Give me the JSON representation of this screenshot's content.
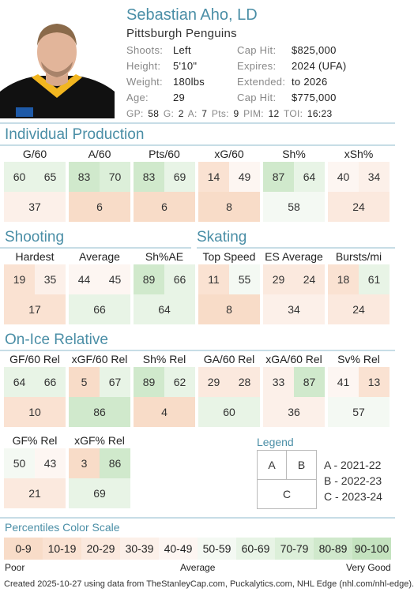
{
  "player": {
    "name": "Sebastian Aho, LD",
    "team": "Pittsburgh Penguins",
    "shoots_label": "Shoots:",
    "shoots": "Left",
    "height_label": "Height:",
    "height": "5'10\"",
    "weight_label": "Weight:",
    "weight": "180lbs",
    "age_label": "Age:",
    "age": "29",
    "caphit_label": "Cap Hit:",
    "caphit": "$825,000",
    "expires_label": "Expires:",
    "expires": "2024 (UFA)",
    "extended_label": "Extended:",
    "extended": "to 2026",
    "caphit2_label": "Cap Hit:",
    "caphit2": "$775,000"
  },
  "statline": {
    "gp_label": "GP:",
    "gp": "58",
    "g_label": "G:",
    "g": "2",
    "a_label": "A:",
    "a": "7",
    "pts_label": "Pts:",
    "pts": "9",
    "pim_label": "PIM:",
    "pim": "12",
    "toi_label": "TOI:",
    "toi": "16:23"
  },
  "colors": {
    "p0": "#f8dcc8",
    "p10": "#fae2d2",
    "p20": "#fbe9de",
    "p30": "#fcf0e9",
    "p40": "#fdf6f2",
    "p50": "#f4f9f3",
    "p60": "#e8f4e6",
    "p70": "#dcefd9",
    "p80": "#d0e9cc",
    "p90": "#c4e3bf"
  },
  "sections": {
    "production": "Individual Production",
    "shooting": "Shooting",
    "skating": "Skating",
    "onice": "On-Ice Relative"
  },
  "cards": [
    {
      "label": "G/60",
      "a": "60",
      "b": "65",
      "c": "37",
      "ca": "p60",
      "cb": "p60",
      "cc": "p30"
    },
    {
      "label": "A/60",
      "a": "83",
      "b": "70",
      "c": "6",
      "ca": "p80",
      "cb": "p70",
      "cc": "p0"
    },
    {
      "label": "Pts/60",
      "a": "83",
      "b": "69",
      "c": "6",
      "ca": "p80",
      "cb": "p60",
      "cc": "p0"
    },
    {
      "label": "xG/60",
      "a": "14",
      "b": "49",
      "c": "8",
      "ca": "p10",
      "cb": "p40",
      "cc": "p0"
    },
    {
      "label": "Sh%",
      "a": "87",
      "b": "64",
      "c": "58",
      "ca": "p80",
      "cb": "p60",
      "cc": "p50"
    },
    {
      "label": "xSh%",
      "a": "40",
      "b": "34",
      "c": "24",
      "ca": "p40",
      "cb": "p30",
      "cc": "p20"
    },
    {
      "label": "Hardest",
      "a": "19",
      "b": "35",
      "c": "17",
      "ca": "p10",
      "cb": "p30",
      "cc": "p10"
    },
    {
      "label": "Average",
      "a": "44",
      "b": "45",
      "c": "66",
      "ca": "p40",
      "cb": "p40",
      "cc": "p60"
    },
    {
      "label": "Sh%AE",
      "a": "89",
      "b": "66",
      "c": "64",
      "ca": "p80",
      "cb": "p60",
      "cc": "p60"
    },
    {
      "label": "Top Speed",
      "a": "11",
      "b": "55",
      "c": "8",
      "ca": "p10",
      "cb": "p50",
      "cc": "p0"
    },
    {
      "label": "ES Average",
      "a": "29",
      "b": "24",
      "c": "34",
      "ca": "p20",
      "cb": "p20",
      "cc": "p30"
    },
    {
      "label": "Bursts/mi",
      "a": "18",
      "b": "61",
      "c": "24",
      "ca": "p10",
      "cb": "p60",
      "cc": "p20"
    },
    {
      "label": "GF/60 Rel",
      "a": "64",
      "b": "66",
      "c": "10",
      "ca": "p60",
      "cb": "p60",
      "cc": "p10"
    },
    {
      "label": "xGF/60 Rel",
      "a": "5",
      "b": "67",
      "c": "86",
      "ca": "p0",
      "cb": "p60",
      "cc": "p80"
    },
    {
      "label": "Sh% Rel",
      "a": "89",
      "b": "62",
      "c": "4",
      "ca": "p80",
      "cb": "p60",
      "cc": "p0"
    },
    {
      "label": "GA/60 Rel",
      "a": "29",
      "b": "28",
      "c": "60",
      "ca": "p20",
      "cb": "p20",
      "cc": "p60"
    },
    {
      "label": "xGA/60 Rel",
      "a": "33",
      "b": "87",
      "c": "36",
      "ca": "p30",
      "cb": "p80",
      "cc": "p30"
    },
    {
      "label": "Sv% Rel",
      "a": "41",
      "b": "13",
      "c": "57",
      "ca": "p40",
      "cb": "p10",
      "cc": "p50"
    },
    {
      "label": "GF% Rel",
      "a": "50",
      "b": "43",
      "c": "21",
      "ca": "p50",
      "cb": "p40",
      "cc": "p20"
    },
    {
      "label": "xGF% Rel",
      "a": "3",
      "b": "86",
      "c": "69",
      "ca": "p0",
      "cb": "p80",
      "cc": "p60"
    }
  ],
  "legend": {
    "title": "Legend",
    "a": "A",
    "b": "B",
    "c": "C",
    "a_text": "A - 2021-22",
    "b_text": "B - 2022-23",
    "c_text": "C - 2023-24"
  },
  "scale": {
    "title": "Percentiles Color Scale",
    "labels": [
      "0-9",
      "10-19",
      "20-29",
      "30-39",
      "40-49",
      "50-59",
      "60-69",
      "70-79",
      "80-89",
      "90-100"
    ],
    "poor": "Poor",
    "average": "Average",
    "very_good": "Very Good"
  },
  "footer": "Created 2025-10-27 using data from TheStanleyCap.com, Puckalytics.com, NHL Edge (nhl.com/nhl-edge)."
}
